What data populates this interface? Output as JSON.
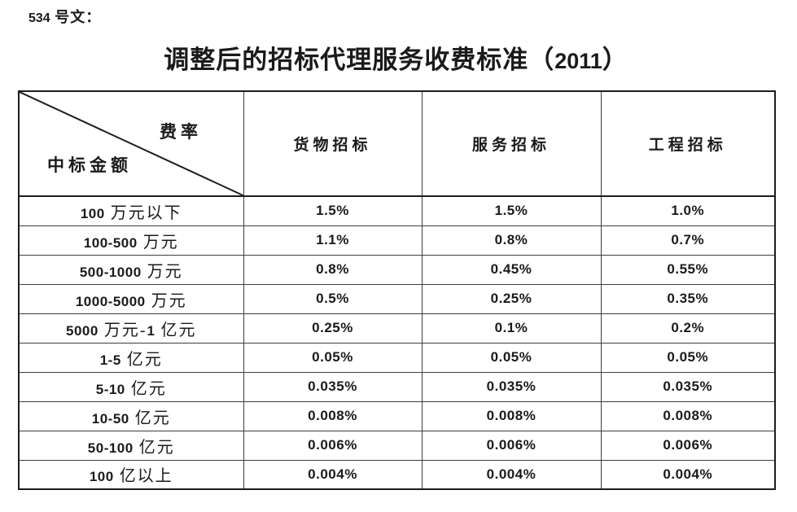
{
  "page": {
    "doc_label": "534 号文：",
    "title": "调整后的招标代理服务收费标准（2011）"
  },
  "table": {
    "corner": {
      "top_right": "费率",
      "bottom_left": "中标金额"
    },
    "columns": [
      "货物招标",
      "服务招标",
      "工程招标"
    ],
    "rows": [
      {
        "amount": "100 万元以下",
        "values": [
          "1.5%",
          "1.5%",
          "1.0%"
        ]
      },
      {
        "amount": "100-500 万元",
        "values": [
          "1.1%",
          "0.8%",
          "0.7%"
        ]
      },
      {
        "amount": "500-1000 万元",
        "values": [
          "0.8%",
          "0.45%",
          "0.55%"
        ]
      },
      {
        "amount": "1000-5000 万元",
        "values": [
          "0.5%",
          "0.25%",
          "0.35%"
        ]
      },
      {
        "amount": "5000 万元-1 亿元",
        "values": [
          "0.25%",
          "0.1%",
          "0.2%"
        ]
      },
      {
        "amount": "1-5 亿元",
        "values": [
          "0.05%",
          "0.05%",
          "0.05%"
        ]
      },
      {
        "amount": "5-10 亿元",
        "values": [
          "0.035%",
          "0.035%",
          "0.035%"
        ]
      },
      {
        "amount": "10-50 亿元",
        "values": [
          "0.008%",
          "0.008%",
          "0.008%"
        ]
      },
      {
        "amount": "50-100 亿元",
        "values": [
          "0.006%",
          "0.006%",
          "0.006%"
        ]
      },
      {
        "amount": "100 亿以上",
        "values": [
          "0.004%",
          "0.004%",
          "0.004%"
        ]
      }
    ]
  }
}
